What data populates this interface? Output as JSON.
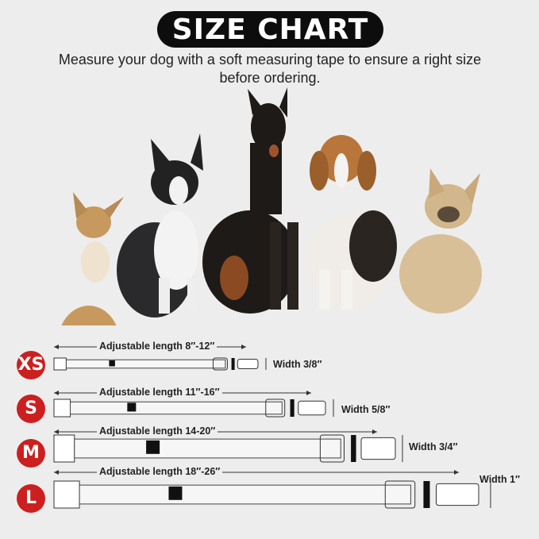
{
  "title": "SIZE CHART",
  "subtitle": "Measure your dog with a soft measuring tape to ensure a right size before ordering.",
  "colors": {
    "badge": "#cc1f1f",
    "title_bg": "#0d0d0d",
    "background": "#ededed"
  },
  "dogs": [
    "chihuahua",
    "boston-terrier",
    "doberman",
    "beagle",
    "french-bulldog"
  ],
  "sizes": [
    {
      "size": "XS",
      "length": "Adjustable length 8″-12″",
      "width": "Width 3/8″"
    },
    {
      "size": "S",
      "length": "Adjustable length 11″-16″",
      "width": "Width 5/8″"
    },
    {
      "size": "M",
      "length": "Adjustable length 14-20″",
      "width": "Width 3/4″"
    },
    {
      "size": "L",
      "length": "Adjustable length 18″-26″",
      "width": "Width 1″"
    }
  ]
}
